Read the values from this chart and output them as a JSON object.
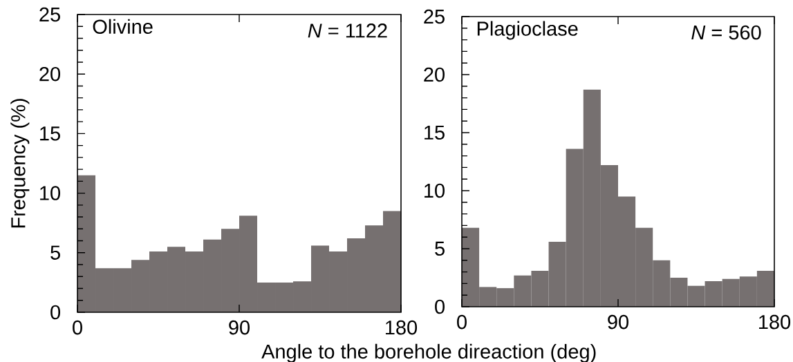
{
  "chart_data": [
    {
      "type": "histogram",
      "ylabel": "Frequency (%)",
      "xlabel": "Angle to the borehole direaction (deg)",
      "annotations": [
        "Olivine",
        "*N* = 1122"
      ],
      "bins": [
        0,
        10,
        20,
        30,
        40,
        50,
        60,
        70,
        80,
        90,
        100,
        110,
        120,
        130,
        140,
        150,
        160,
        170,
        180
      ],
      "values": [
        11.5,
        3.7,
        3.7,
        4.4,
        5.1,
        5.5,
        5.1,
        6.1,
        7.0,
        8.1,
        2.5,
        2.5,
        2.6,
        5.6,
        5.1,
        6.2,
        7.3,
        8.5
      ],
      "color": "#767070",
      "xlim": [
        0,
        180
      ],
      "xticks": [
        0,
        90,
        180
      ],
      "ylim": [
        0,
        25
      ],
      "yticks": [
        0,
        5,
        10,
        15,
        20,
        25
      ]
    },
    {
      "type": "histogram",
      "annotations": [
        "Plagioclase",
        "*N* = 560"
      ],
      "bins": [
        0,
        10,
        20,
        30,
        40,
        50,
        60,
        70,
        80,
        90,
        100,
        110,
        120,
        130,
        140,
        150,
        160,
        170,
        180
      ],
      "values": [
        6.8,
        1.7,
        1.6,
        2.7,
        3.1,
        5.6,
        13.6,
        18.7,
        12.2,
        9.5,
        6.8,
        4.0,
        2.5,
        1.8,
        2.2,
        2.4,
        2.6,
        3.1
      ],
      "color": "#767070",
      "xlim": [
        0,
        180
      ],
      "xticks": [
        0,
        90,
        180
      ],
      "ylim": [
        0,
        25
      ],
      "yticks": [
        0,
        5,
        10,
        15,
        20,
        25
      ]
    }
  ]
}
